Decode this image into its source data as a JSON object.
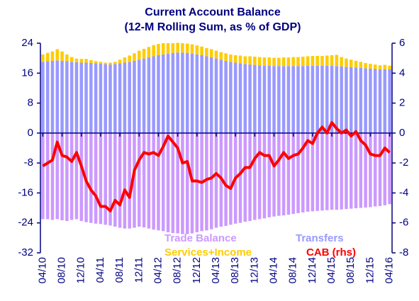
{
  "chart_data": {
    "type": "bar",
    "title": "Current Account Balance",
    "subtitle": "(12-M Rolling Sum, as % of GDP)",
    "categories": [
      "04/10",
      null,
      null,
      null,
      "08/10",
      null,
      null,
      null,
      "12/10",
      null,
      null,
      null,
      "04/11",
      null,
      null,
      null,
      "08/11",
      null,
      null,
      null,
      "12/11",
      null,
      null,
      null,
      "04/12",
      null,
      null,
      null,
      "08/12",
      null,
      null,
      null,
      "12/12",
      null,
      null,
      null,
      "04/13",
      null,
      null,
      null,
      "08/13",
      null,
      null,
      null,
      "12/13",
      null,
      null,
      null,
      "04/14",
      null,
      null,
      null,
      "08/14",
      null,
      null,
      null,
      "12/14",
      null,
      null,
      null,
      "04/15",
      null,
      null,
      null,
      "08/15",
      null,
      null,
      null,
      "12/15",
      null,
      null,
      null,
      "04/16"
    ],
    "series": [
      {
        "name": "Trade Balance",
        "type": "bar",
        "color": "#cc99ff",
        "values": [
          -23,
          -23,
          -23.2,
          -23,
          -23.3,
          -23.5,
          -23.2,
          -23,
          -23.5,
          -23.8,
          -24,
          -24.2,
          -24.3,
          -24.5,
          -24.7,
          -25,
          -25.3,
          -25.5,
          -25.5,
          -25.3,
          -25,
          -25.2,
          -25.5,
          -25.8,
          -26,
          -26.2,
          -26.5,
          -26.7,
          -26.8,
          -27,
          -27,
          -26.8,
          -26.5,
          -26.2,
          -26,
          -25.7,
          -25.3,
          -25,
          -24.8,
          -24.5,
          -24.2,
          -24,
          -23.7,
          -23.5,
          -23.2,
          -23,
          -22.8,
          -22.5,
          -22.3,
          -22.1,
          -22,
          -21.8,
          -21.6,
          -21.4,
          -21.2,
          -21,
          -20.9,
          -20.8,
          -20.7,
          -20.6,
          -20.5,
          -20.5,
          -20.4,
          -20.3,
          -20.2,
          -20.1,
          -20,
          -19.9,
          -19.8,
          -19.6,
          -19.5,
          -19.3,
          -19
        ]
      },
      {
        "name": "Transfers",
        "type": "bar",
        "color": "#9999ff",
        "values": [
          19,
          19.2,
          19.3,
          19.4,
          19.3,
          19.2,
          19,
          18.9,
          18.8,
          18.8,
          18.7,
          18.6,
          18.5,
          18.4,
          18.3,
          18.4,
          18.6,
          18.8,
          19,
          19.3,
          19.6,
          19.9,
          20.2,
          20.5,
          20.8,
          21,
          21.2,
          21.4,
          21.5,
          21.5,
          21.4,
          21.2,
          21,
          20.8,
          20.5,
          20.2,
          19.9,
          19.6,
          19.3,
          19,
          18.8,
          18.6,
          18.4,
          18.3,
          18.2,
          18.1,
          18,
          18,
          17.9,
          17.9,
          17.9,
          17.9,
          17.9,
          17.9,
          17.9,
          18,
          18,
          18,
          18,
          18,
          18,
          17.9,
          17.8,
          17.7,
          17.6,
          17.5,
          17.4,
          17.3,
          17.2,
          17.1,
          17,
          17,
          17
        ]
      },
      {
        "name": "Services+Income",
        "type": "bar",
        "color": "#ffcc00",
        "values": [
          2,
          2.2,
          2.5,
          3,
          2.5,
          1.8,
          1.3,
          1,
          1,
          1,
          0.8,
          0.6,
          0.5,
          0.4,
          0.5,
          0.6,
          1,
          1.4,
          1.7,
          2,
          2.4,
          2.6,
          2.8,
          3,
          3,
          3,
          2.8,
          2.6,
          2.6,
          2.5,
          2.5,
          2.5,
          2.4,
          2.3,
          2.2,
          2.2,
          2.1,
          2,
          2,
          2,
          2,
          2.1,
          2.1,
          2.2,
          2.2,
          2.2,
          2.2,
          2.2,
          2.2,
          2.2,
          2.3,
          2.3,
          2.4,
          2.4,
          2.5,
          2.5,
          2.6,
          2.6,
          2.6,
          2.7,
          2.8,
          3,
          2.5,
          2.2,
          2,
          1.8,
          1.6,
          1.4,
          1.3,
          1.2,
          1.1,
          1.2,
          1
        ]
      },
      {
        "name": "CAB (rhs)",
        "type": "line",
        "axis": "y2",
        "color": "#ff0000",
        "values": [
          -2.2,
          -2,
          -1.8,
          -0.6,
          -1.5,
          -1.6,
          -1.9,
          -1.3,
          -2.2,
          -3.2,
          -3.8,
          -4.2,
          -4.9,
          -4.9,
          -5.2,
          -4.5,
          -4.8,
          -3.8,
          -4.3,
          -2.5,
          -1.8,
          -1.3,
          -1.4,
          -1.3,
          -1.5,
          -0.9,
          -0.2,
          -0.6,
          -1,
          -2,
          -1.9,
          -3.2,
          -3.2,
          -3.3,
          -3.1,
          -3,
          -2.7,
          -3,
          -3.5,
          -3.7,
          -3,
          -2.7,
          -2.3,
          -2.3,
          -1.7,
          -1.3,
          -1.5,
          -1.5,
          -2.2,
          -1.8,
          -1.3,
          -1.7,
          -1.5,
          -1.4,
          -1,
          -0.5,
          -0.7,
          0,
          0.4,
          0,
          0.7,
          0.3,
          0,
          0.2,
          -0.2,
          0.1,
          -0.5,
          -0.8,
          -1.4,
          -1.5,
          -1.5,
          -1,
          -1.3
        ]
      }
    ],
    "ylim": [
      -32,
      24
    ],
    "yticks": [
      -32,
      -24,
      -16,
      -8,
      0,
      8,
      16,
      24
    ],
    "y2lim": [
      -8,
      6
    ],
    "y2ticks": [
      -8,
      -6,
      -4,
      -2,
      0,
      2,
      4,
      6
    ],
    "axis_color": "#000080"
  }
}
